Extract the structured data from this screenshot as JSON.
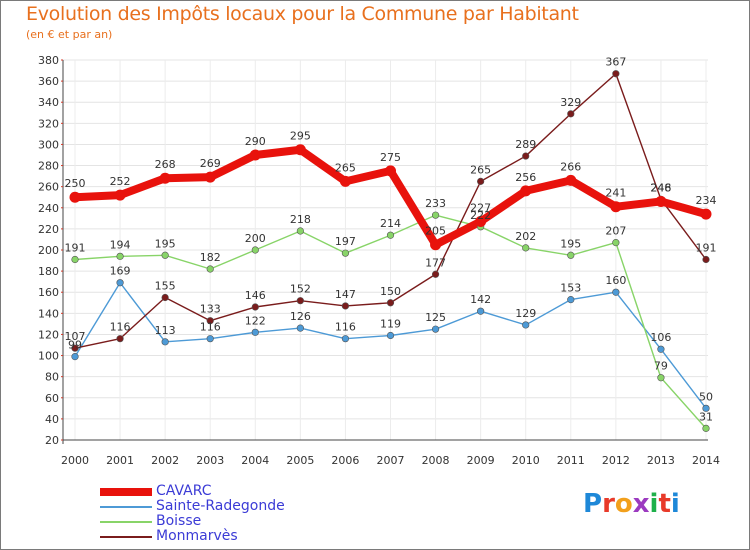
{
  "header": {
    "title": "Evolution des Impôts locaux pour la Commune par Habitant",
    "subtitle": "(en € et par an)"
  },
  "logo": {
    "text": "Proxiti",
    "colors": [
      "#1e88d8",
      "#e83a2a",
      "#f2a01c",
      "#9c3ac0",
      "#1eb04a",
      "#e83a2a",
      "#1e88d8"
    ]
  },
  "chart_data": {
    "type": "line",
    "x": [
      2000,
      2001,
      2002,
      2003,
      2004,
      2005,
      2006,
      2007,
      2008,
      2009,
      2010,
      2011,
      2012,
      2013,
      2014
    ],
    "ylim": [
      20,
      380
    ],
    "yticks": [
      20,
      40,
      60,
      80,
      100,
      120,
      140,
      160,
      180,
      200,
      220,
      240,
      260,
      280,
      300,
      320,
      340,
      360,
      380
    ],
    "grid": true,
    "legend_position": "bottom-left",
    "series": [
      {
        "name": "CAVARC",
        "color": "#e8120c",
        "thick": true,
        "values": [
          250,
          252,
          268,
          269,
          290,
          295,
          265,
          275,
          205,
          227,
          256,
          266,
          241,
          246,
          234
        ],
        "labels": [
          "250",
          "252",
          "268",
          "269",
          "290",
          "295",
          "265",
          "275",
          "205",
          "227",
          "256",
          "266",
          "241",
          "246",
          "234"
        ]
      },
      {
        "name": "Sainte-Radegonde",
        "color": "#4d9ad6",
        "thick": false,
        "values": [
          99,
          169,
          113,
          116,
          122,
          126,
          116,
          119,
          125,
          142,
          129,
          153,
          160,
          106,
          50
        ],
        "labels": [
          "99",
          "169",
          "113",
          "116",
          "122",
          "126",
          "116",
          "119",
          "125",
          "142",
          "129",
          "153",
          "160",
          "106",
          "50"
        ]
      },
      {
        "name": "Boisse",
        "color": "#88d468",
        "thick": false,
        "values": [
          191,
          194,
          195,
          182,
          200,
          218,
          197,
          214,
          233,
          222,
          202,
          195,
          207,
          79,
          31
        ],
        "labels": [
          "191",
          "194",
          "195",
          "182",
          "200",
          "218",
          "197",
          "214",
          "233",
          "222",
          "202",
          "195",
          "207",
          "79",
          "31"
        ]
      },
      {
        "name": "Monmarvès",
        "color": "#7a1c1c",
        "thick": false,
        "values": [
          107,
          116,
          155,
          133,
          146,
          152,
          147,
          150,
          177,
          265,
          289,
          329,
          367,
          248,
          191
        ],
        "labels": [
          "107",
          "116",
          "155",
          "133",
          "146",
          "152",
          "147",
          "150",
          "177",
          "265",
          "289",
          "329",
          "367",
          "248",
          "191"
        ]
      }
    ]
  }
}
